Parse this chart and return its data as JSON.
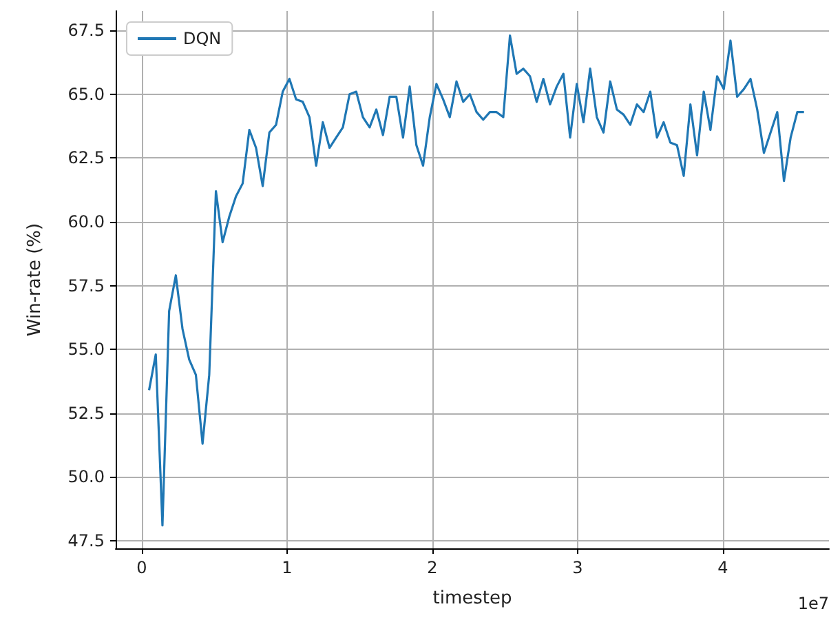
{
  "chart_data": {
    "type": "line",
    "xlabel": "timestep",
    "ylabel": "Win-rate (%)",
    "annotations": [
      "1e7"
    ],
    "x": [
      0.05,
      0.096,
      0.142,
      0.188,
      0.234,
      0.28,
      0.326,
      0.372,
      0.418,
      0.464,
      0.51,
      0.556,
      0.602,
      0.648,
      0.694,
      0.74,
      0.786,
      0.832,
      0.878,
      0.924,
      0.97,
      1.016,
      1.062,
      1.108,
      1.154,
      1.2,
      1.246,
      1.292,
      1.338,
      1.384,
      1.43,
      1.476,
      1.522,
      1.568,
      1.614,
      1.66,
      1.706,
      1.752,
      1.798,
      1.844,
      1.89,
      1.936,
      1.982,
      2.028,
      2.074,
      2.12,
      2.166,
      2.212,
      2.258,
      2.304,
      2.35,
      2.396,
      2.442,
      2.488,
      2.534,
      2.58,
      2.626,
      2.672,
      2.718,
      2.764,
      2.81,
      2.856,
      2.902,
      2.948,
      2.994,
      3.04,
      3.086,
      3.132,
      3.178,
      3.224,
      3.27,
      3.316,
      3.362,
      3.408,
      3.454,
      3.5,
      3.546,
      3.592,
      3.638,
      3.684,
      3.73,
      3.776,
      3.822,
      3.868,
      3.914,
      3.96,
      4.006,
      4.052,
      4.098,
      4.144,
      4.19,
      4.236,
      4.282,
      4.328,
      4.374,
      4.42,
      4.466,
      4.512,
      4.558
    ],
    "series": [
      {
        "name": "DQN",
        "color": "#1f77b4",
        "values": [
          53.4,
          54.8,
          48.1,
          56.5,
          57.9,
          55.8,
          54.6,
          54.0,
          51.3,
          54.0,
          61.2,
          59.2,
          60.2,
          61.0,
          61.5,
          63.6,
          62.9,
          61.4,
          63.5,
          63.8,
          65.1,
          65.6,
          64.8,
          64.7,
          64.1,
          62.2,
          63.9,
          62.9,
          63.3,
          63.7,
          65.0,
          65.1,
          64.1,
          63.7,
          64.4,
          63.4,
          64.9,
          64.9,
          63.3,
          65.3,
          63.0,
          62.2,
          64.1,
          65.4,
          64.8,
          64.1,
          65.5,
          64.7,
          65.0,
          64.3,
          64.0,
          64.3,
          64.3,
          64.1,
          67.3,
          65.8,
          66.0,
          65.7,
          64.7,
          65.6,
          64.6,
          65.3,
          65.8,
          63.3,
          65.4,
          63.9,
          66.0,
          64.1,
          63.5,
          65.5,
          64.4,
          64.2,
          63.8,
          64.6,
          64.3,
          65.1,
          63.3,
          63.9,
          63.1,
          63.0,
          61.8,
          64.6,
          62.6,
          65.1,
          63.6,
          65.7,
          65.2,
          67.1,
          64.9,
          65.2,
          65.6,
          64.4,
          62.7,
          63.5,
          64.3,
          61.6,
          63.3,
          64.3,
          64.3
        ]
      }
    ],
    "xlim": [
      -0.18,
      4.73
    ],
    "xticks": [
      0,
      1,
      2,
      3,
      4
    ],
    "ylim": [
      47.2,
      68.26
    ],
    "yticks": [
      {
        "value": 47.5,
        "label": "47.5"
      },
      {
        "value": 50,
        "label": "50.0"
      },
      {
        "value": 52.5,
        "label": "52.5"
      },
      {
        "value": 55,
        "label": "55.0"
      },
      {
        "value": 57.5,
        "label": "57.5"
      },
      {
        "value": 60,
        "label": "60.0"
      },
      {
        "value": 62.5,
        "label": "62.5"
      },
      {
        "value": 65,
        "label": "65.0"
      },
      {
        "value": 67.5,
        "label": "67.5"
      }
    ],
    "grid": true,
    "legend": "top left",
    "marker": "none",
    "line_style": "solid"
  }
}
